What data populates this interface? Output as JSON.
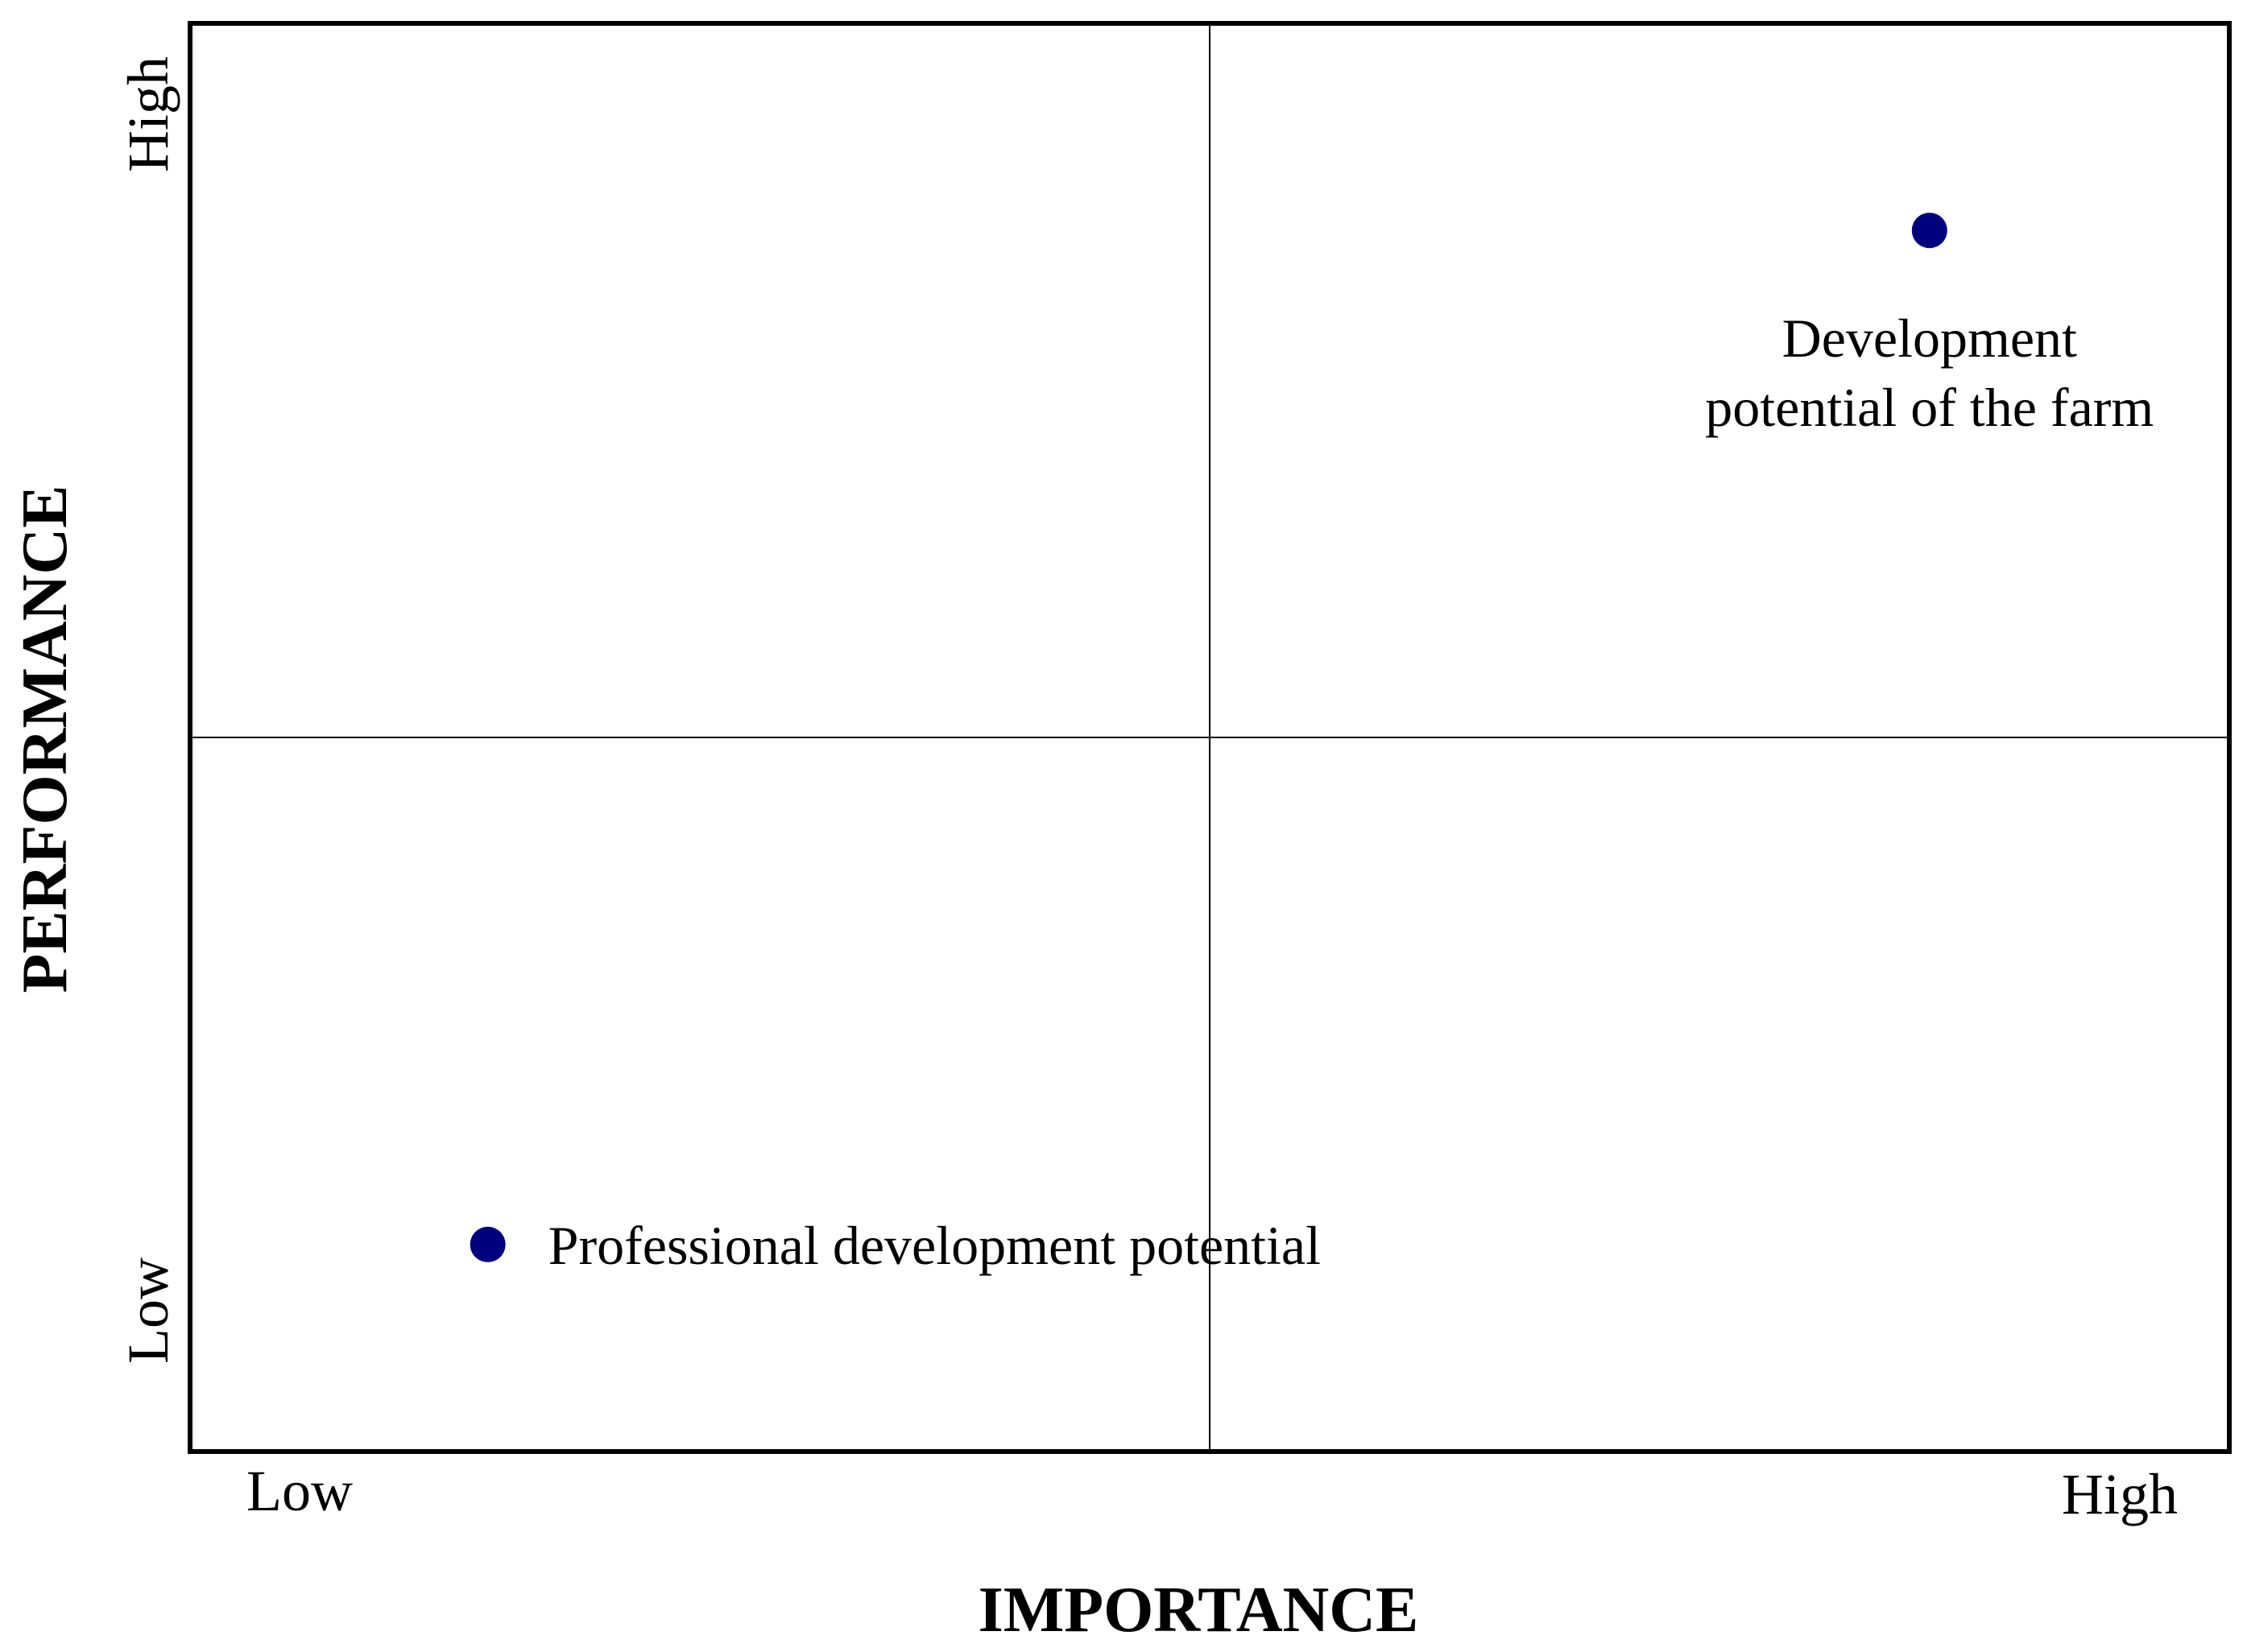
{
  "chart_data": {
    "type": "scatter",
    "title": "",
    "xlabel": "IMPORTANCE",
    "ylabel": "PERFORMANCE",
    "x_tick_labels": {
      "low": "Low",
      "high": "High"
    },
    "y_tick_labels": {
      "low": "Low",
      "high": "High"
    },
    "xlim": [
      0,
      1
    ],
    "ylim": [
      0,
      1
    ],
    "quadrant_dividers": {
      "x": 0.5,
      "y": 0.5
    },
    "grid": false,
    "point_color": "#00007f",
    "points": [
      {
        "label_lines": [
          "Development",
          "potential of the farm"
        ],
        "x": 0.853,
        "y": 0.855
      },
      {
        "label_lines": [
          "Professional development potential"
        ],
        "x": 0.146,
        "y": 0.145
      }
    ]
  }
}
